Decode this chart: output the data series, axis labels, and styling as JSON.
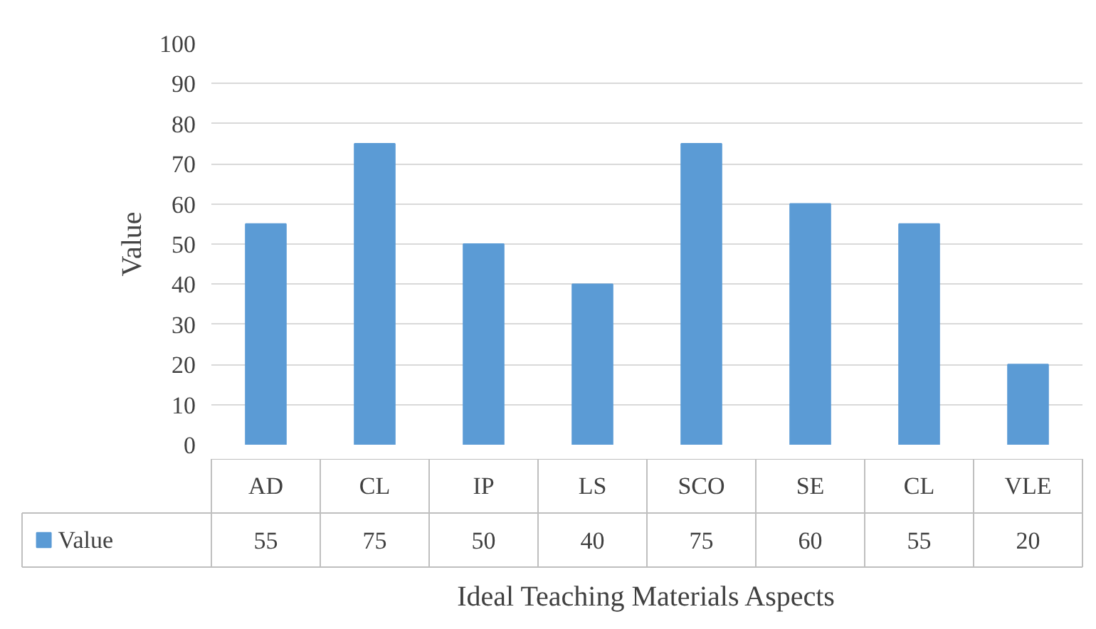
{
  "chart_data": {
    "type": "bar",
    "xlabel": "Ideal Teaching Materials Aspects",
    "ylabel": "Value",
    "categories": [
      "AD",
      "CL",
      "IP",
      "LS",
      "SCO",
      "SE",
      "CL",
      "VLE"
    ],
    "series": [
      {
        "name": "Value",
        "color": "#5b9bd5",
        "values": [
          55,
          75,
          50,
          40,
          75,
          60,
          55,
          20
        ]
      }
    ],
    "ylim": [
      0,
      100
    ],
    "yticks": [
      0,
      10,
      20,
      30,
      40,
      50,
      60,
      70,
      80,
      90,
      100
    ],
    "grid": "y",
    "legend": "bottom",
    "data_labels": true
  }
}
